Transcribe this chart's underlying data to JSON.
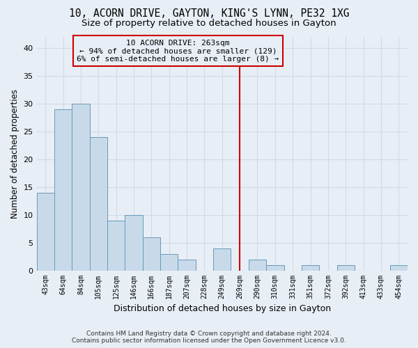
{
  "title1": "10, ACORN DRIVE, GAYTON, KING'S LYNN, PE32 1XG",
  "title2": "Size of property relative to detached houses in Gayton",
  "xlabel": "Distribution of detached houses by size in Gayton",
  "ylabel": "Number of detached properties",
  "bar_color": "#c8daea",
  "bar_edge_color": "#6699bb",
  "bins": [
    "43sqm",
    "64sqm",
    "84sqm",
    "105sqm",
    "125sqm",
    "146sqm",
    "166sqm",
    "187sqm",
    "207sqm",
    "228sqm",
    "249sqm",
    "269sqm",
    "290sqm",
    "310sqm",
    "331sqm",
    "351sqm",
    "372sqm",
    "392sqm",
    "413sqm",
    "433sqm",
    "454sqm"
  ],
  "values": [
    14,
    29,
    30,
    24,
    9,
    10,
    6,
    3,
    2,
    0,
    4,
    0,
    2,
    1,
    0,
    1,
    0,
    1,
    0,
    0,
    1
  ],
  "vline_color": "#cc0000",
  "vline_pos": 11,
  "ylim": [
    0,
    42
  ],
  "yticks": [
    0,
    5,
    10,
    15,
    20,
    25,
    30,
    35,
    40
  ],
  "annotation_text": "10 ACORN DRIVE: 263sqm\n← 94% of detached houses are smaller (129)\n6% of semi-detached houses are larger (8) →",
  "footer": "Contains HM Land Registry data © Crown copyright and database right 2024.\nContains public sector information licensed under the Open Government Licence v3.0.",
  "background_color": "#e8eef5",
  "grid_color": "#d0dae8",
  "title_fontsize": 10.5,
  "subtitle_fontsize": 9.5,
  "tick_fontsize": 7,
  "ylabel_fontsize": 8.5,
  "xlabel_fontsize": 9,
  "footer_fontsize": 6.5
}
